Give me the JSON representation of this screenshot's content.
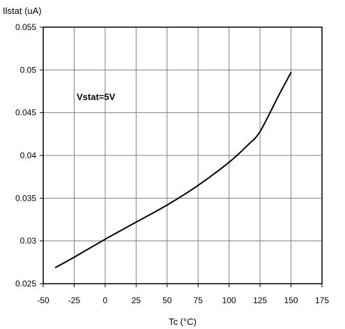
{
  "chart_data": {
    "type": "line",
    "title": "",
    "xlabel": "Tc (°C)",
    "ylabel": "Ilstat (uA)",
    "xlim": [
      -50,
      175
    ],
    "ylim": [
      0.025,
      0.055
    ],
    "x_ticks": [
      -50,
      -25,
      0,
      25,
      50,
      75,
      100,
      125,
      150,
      175
    ],
    "x_tick_labels": [
      "-50",
      "-25",
      "0",
      "25",
      "50",
      "75",
      "100",
      "125",
      "150",
      "175"
    ],
    "y_ticks": [
      0.025,
      0.03,
      0.035,
      0.04,
      0.045,
      0.05,
      0.055
    ],
    "y_tick_labels": [
      "0.025",
      "0.03",
      "0.035",
      "0.04",
      "0.045",
      "0.05",
      "0.055"
    ],
    "grid": true,
    "annotation": {
      "text": "Vstat=5V",
      "x": -23,
      "y": 0.0465
    },
    "series": [
      {
        "x": [
          -40,
          -25,
          0,
          25,
          50,
          75,
          100,
          115,
          125,
          140,
          150
        ],
        "y": [
          0.0269,
          0.0281,
          0.0302,
          0.0322,
          0.0342,
          0.0365,
          0.0392,
          0.0412,
          0.0428,
          0.047,
          0.0497
        ]
      }
    ],
    "line_color": "#000000",
    "grid_color": "#808080"
  }
}
